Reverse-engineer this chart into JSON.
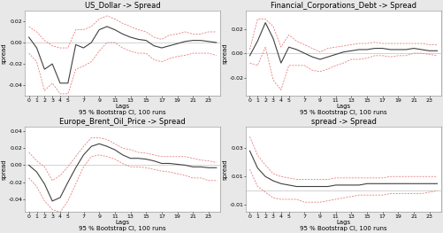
{
  "titles": [
    "US_Dollar -> Spread",
    "Financial_Corporations_Debt -> Spread",
    "Europe_Brent_Oil_Price -> Spread",
    "spread -> Spread"
  ],
  "xlabel": "Lags",
  "xlabel2": "95 % Bootstrap CI, 100 runs",
  "ylabel": "spread",
  "lags": [
    0,
    1,
    2,
    3,
    4,
    5,
    6,
    7,
    8,
    9,
    10,
    11,
    12,
    13,
    14,
    15,
    16,
    17,
    18,
    19,
    20,
    21,
    22,
    23,
    24
  ],
  "xticks": [
    0,
    1,
    2,
    3,
    4,
    5,
    7,
    9,
    11,
    13,
    15,
    17,
    19,
    21,
    23
  ],
  "irf1_center": [
    0.005,
    -0.005,
    -0.025,
    -0.02,
    -0.038,
    -0.038,
    -0.002,
    -0.005,
    0.0,
    0.012,
    0.015,
    0.012,
    0.008,
    0.005,
    0.003,
    0.002,
    -0.003,
    -0.005,
    -0.003,
    -0.001,
    0.001,
    0.002,
    0.002,
    0.001,
    0.0
  ],
  "irf1_upper": [
    0.015,
    0.01,
    0.002,
    -0.003,
    -0.005,
    -0.005,
    0.012,
    0.012,
    0.015,
    0.022,
    0.025,
    0.022,
    0.018,
    0.015,
    0.012,
    0.01,
    0.005,
    0.003,
    0.007,
    0.008,
    0.01,
    0.008,
    0.008,
    0.01,
    0.01
  ],
  "irf1_lower": [
    -0.01,
    -0.018,
    -0.045,
    -0.038,
    -0.048,
    -0.048,
    -0.025,
    -0.022,
    -0.018,
    -0.008,
    0.0,
    0.0,
    -0.005,
    -0.008,
    -0.01,
    -0.01,
    -0.016,
    -0.018,
    -0.015,
    -0.013,
    -0.012,
    -0.01,
    -0.01,
    -0.01,
    -0.012
  ],
  "irf1_ylim": [
    -0.05,
    0.03
  ],
  "irf1_yticks": [
    -0.04,
    -0.02,
    0.0,
    0.02
  ],
  "irf2_center": [
    -0.002,
    0.01,
    0.025,
    0.012,
    -0.008,
    0.005,
    0.003,
    0.0,
    -0.003,
    -0.005,
    -0.003,
    -0.001,
    0.001,
    0.002,
    0.003,
    0.003,
    0.004,
    0.004,
    0.003,
    0.003,
    0.003,
    0.004,
    0.003,
    0.002,
    0.002
  ],
  "irf2_upper": [
    0.003,
    0.028,
    0.028,
    0.022,
    0.005,
    0.015,
    0.01,
    0.007,
    0.004,
    0.001,
    0.004,
    0.005,
    0.006,
    0.007,
    0.008,
    0.008,
    0.009,
    0.008,
    0.008,
    0.008,
    0.008,
    0.008,
    0.008,
    0.007,
    0.007
  ],
  "irf2_lower": [
    -0.008,
    -0.01,
    0.005,
    -0.022,
    -0.03,
    -0.01,
    -0.01,
    -0.01,
    -0.014,
    -0.015,
    -0.013,
    -0.01,
    -0.008,
    -0.005,
    -0.005,
    -0.004,
    -0.002,
    -0.002,
    -0.003,
    -0.002,
    -0.002,
    0.0,
    0.0,
    -0.001,
    -0.002
  ],
  "irf2_ylim": [
    -0.035,
    0.035
  ],
  "irf2_yticks": [
    -0.02,
    0.0,
    0.02
  ],
  "irf3_center": [
    0.0,
    -0.008,
    -0.022,
    -0.042,
    -0.038,
    -0.02,
    -0.003,
    0.012,
    0.022,
    0.025,
    0.022,
    0.018,
    0.012,
    0.008,
    0.008,
    0.007,
    0.005,
    0.002,
    0.002,
    0.001,
    0.0,
    -0.002,
    -0.002,
    -0.003,
    -0.003
  ],
  "irf3_upper": [
    0.015,
    0.005,
    -0.002,
    -0.018,
    -0.012,
    -0.002,
    0.01,
    0.022,
    0.032,
    0.032,
    0.03,
    0.025,
    0.02,
    0.018,
    0.015,
    0.014,
    0.012,
    0.01,
    0.01,
    0.01,
    0.01,
    0.008,
    0.006,
    0.005,
    0.003
  ],
  "irf3_lower": [
    -0.015,
    -0.025,
    -0.042,
    -0.052,
    -0.055,
    -0.042,
    -0.022,
    -0.002,
    0.01,
    0.012,
    0.01,
    0.007,
    0.002,
    -0.002,
    -0.002,
    -0.003,
    -0.005,
    -0.007,
    -0.008,
    -0.01,
    -0.012,
    -0.015,
    -0.015,
    -0.018,
    -0.018
  ],
  "irf3_ylim": [
    -0.055,
    0.045
  ],
  "irf3_yticks": [
    -0.04,
    -0.02,
    0.0,
    0.02,
    0.04
  ],
  "irf4_center": [
    0.028,
    0.016,
    0.01,
    0.007,
    0.005,
    0.004,
    0.003,
    0.003,
    0.003,
    0.003,
    0.003,
    0.004,
    0.004,
    0.004,
    0.004,
    0.005,
    0.005,
    0.005,
    0.005,
    0.005,
    0.005,
    0.005,
    0.005,
    0.005,
    0.005
  ],
  "irf4_upper": [
    0.038,
    0.025,
    0.018,
    0.012,
    0.01,
    0.009,
    0.008,
    0.008,
    0.008,
    0.008,
    0.008,
    0.009,
    0.009,
    0.009,
    0.009,
    0.009,
    0.009,
    0.009,
    0.01,
    0.01,
    0.01,
    0.01,
    0.01,
    0.01,
    0.01
  ],
  "irf4_lower": [
    0.015,
    0.003,
    -0.001,
    -0.005,
    -0.006,
    -0.006,
    -0.006,
    -0.008,
    -0.008,
    -0.008,
    -0.007,
    -0.006,
    -0.005,
    -0.004,
    -0.003,
    -0.003,
    -0.003,
    -0.003,
    -0.002,
    -0.002,
    -0.002,
    -0.002,
    -0.002,
    -0.001,
    0.0
  ],
  "irf4_ylim": [
    -0.015,
    0.045
  ],
  "irf4_yticks": [
    -0.01,
    0.01,
    0.03
  ],
  "center_color": "#404040",
  "ci_color": "#e88080",
  "zero_color": "#c0c0c0",
  "bg_color": "#e8e8e8",
  "plot_bg": "#ffffff",
  "title_fontsize": 6,
  "label_fontsize": 5,
  "tick_fontsize": 4.5
}
